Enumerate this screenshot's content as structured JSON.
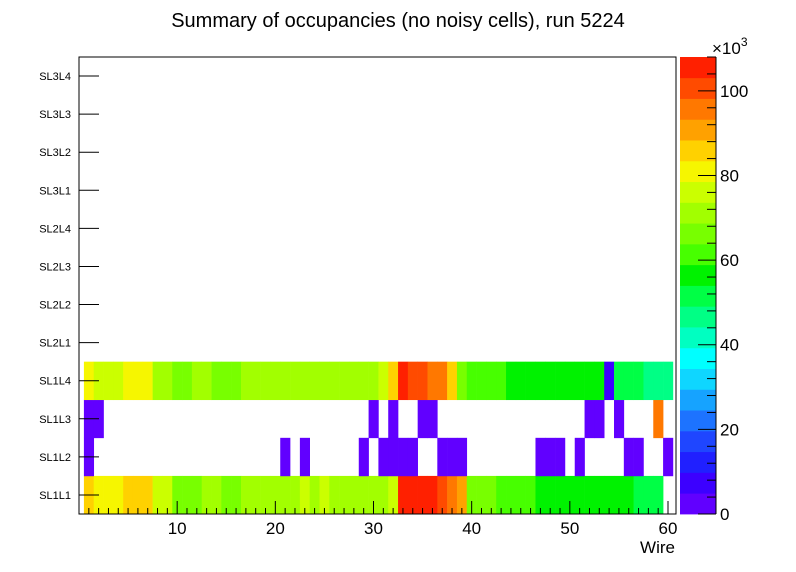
{
  "chart_data": {
    "type": "heatmap",
    "title": "Summary of occupancies (no noisy cells), run 5224",
    "xlabel": "Wire",
    "ylabel": "",
    "xlim": [
      0,
      60
    ],
    "x_ticks": [
      "10",
      "20",
      "30",
      "40",
      "50",
      "60"
    ],
    "rows": [
      "SL1L1",
      "SL1L2",
      "SL1L3",
      "SL1L4",
      "SL2L1",
      "SL2L2",
      "SL2L3",
      "SL2L4",
      "SL3L1",
      "SL3L2",
      "SL3L3",
      "SL3L4"
    ],
    "zmin": 0,
    "zmax": 108000,
    "z_multiplier": "×10",
    "z_exponent": "3",
    "z_ticks": [
      "0",
      "20",
      "40",
      "60",
      "80",
      "100"
    ],
    "palette": [
      "#6100ff",
      "#3c00ff",
      "#2020ff",
      "#1f46ff",
      "#1d73ff",
      "#16a3ff",
      "#0fd6ff",
      "#00ffff",
      "#00ffc1",
      "#00ff85",
      "#00ff45",
      "#00f200",
      "#47ff00",
      "#78ff00",
      "#a2ff00",
      "#cbff00",
      "#f6f600",
      "#ffd100",
      "#ffa100",
      "#ff7800",
      "#ff4b00",
      "#ff2000"
    ],
    "values": {
      "SL1L1": [
        88000,
        80000,
        80000,
        80000,
        86000,
        86000,
        86000,
        75000,
        75000,
        66000,
        66000,
        66000,
        72000,
        72000,
        66000,
        66000,
        72000,
        72000,
        72000,
        72000,
        72000,
        72000,
        75000,
        72000,
        75000,
        72000,
        72000,
        72000,
        72000,
        72000,
        72000,
        75000,
        108000,
        108000,
        108000,
        108000,
        102000,
        98000,
        91000,
        66000,
        66000,
        66000,
        62000,
        62000,
        62000,
        62000,
        54000,
        54000,
        54000,
        54000,
        54000,
        54000,
        54000,
        54000,
        54000,
        54000,
        50000,
        50000,
        50000,
        0
      ],
      "SL1L2": [
        3000,
        0,
        0,
        0,
        0,
        0,
        0,
        0,
        0,
        0,
        0,
        0,
        0,
        0,
        0,
        0,
        0,
        0,
        0,
        0,
        3000,
        0,
        3000,
        0,
        0,
        0,
        0,
        0,
        3000,
        0,
        3000,
        3000,
        3000,
        3000,
        0,
        0,
        3000,
        3000,
        3000,
        0,
        0,
        0,
        0,
        0,
        0,
        0,
        3000,
        3000,
        3000,
        0,
        3000,
        0,
        0,
        0,
        0,
        3000,
        3000,
        0,
        0,
        3000
      ],
      "SL1L3": [
        3000,
        3000,
        0,
        0,
        0,
        0,
        0,
        0,
        0,
        0,
        0,
        0,
        0,
        0,
        0,
        0,
        0,
        0,
        0,
        0,
        0,
        0,
        0,
        0,
        0,
        0,
        0,
        0,
        0,
        3000,
        0,
        3000,
        0,
        0,
        3000,
        3000,
        0,
        0,
        0,
        0,
        0,
        0,
        0,
        0,
        0,
        0,
        0,
        0,
        0,
        0,
        0,
        3000,
        3000,
        0,
        3000,
        0,
        0,
        0,
        96000,
        0
      ],
      "SL1L4": [
        83000,
        75000,
        75000,
        75000,
        80000,
        80000,
        80000,
        72000,
        72000,
        66000,
        66000,
        72000,
        72000,
        66000,
        66000,
        66000,
        69000,
        69000,
        69000,
        69000,
        69000,
        69000,
        69000,
        69000,
        69000,
        69000,
        69000,
        69000,
        69000,
        69000,
        77000,
        88000,
        106000,
        102000,
        102000,
        98000,
        94000,
        88000,
        66000,
        62000,
        62000,
        62000,
        62000,
        58000,
        58000,
        58000,
        54000,
        54000,
        58000,
        54000,
        54000,
        54000,
        54000,
        5000,
        50000,
        50000,
        50000,
        46000,
        46000,
        46000
      ],
      "SL2L1": [],
      "SL2L2": [],
      "SL2L3": [],
      "SL2L4": [],
      "SL3L1": [],
      "SL3L2": [],
      "SL3L3": [],
      "SL3L4": []
    }
  }
}
